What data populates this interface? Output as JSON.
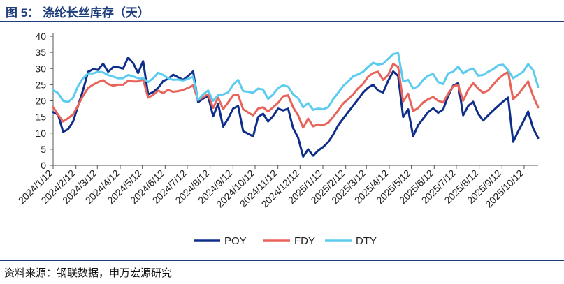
{
  "title": "图 5： 涤纶长丝库存（天）",
  "source": "资料来源：钢联数据，申万宏源研究",
  "chart_data": {
    "type": "line",
    "title": "涤纶长丝库存（天）",
    "xlabel": "",
    "ylabel": "",
    "ylim": [
      0,
      40
    ],
    "yticks": [
      "0",
      "5",
      "10",
      "15",
      "20",
      "25",
      "30",
      "35",
      "40"
    ],
    "x_start": "2024-01-12",
    "x_end": "2025-10-31",
    "x_ticks": [
      "2024/1/12",
      "2024/2/12",
      "2024/3/12",
      "2024/4/12",
      "2024/5/12",
      "2024/6/12",
      "2024/7/12",
      "2024/8/12",
      "2024/9/12",
      "2024/10/12",
      "2024/11/12",
      "2024/12/12",
      "2025/1/12",
      "2025/2/12",
      "2025/3/12",
      "2025/4/12",
      "2025/5/12",
      "2025/6/12",
      "2025/7/12",
      "2025/8/12",
      "2025/9/12",
      "2025/10/12"
    ],
    "legend_position": "bottom-center",
    "series": [
      {
        "name": "POY",
        "color": "#0F2E8A",
        "values": [
          16.5,
          15.7,
          10.4,
          11.2,
          13.6,
          18.5,
          23.4,
          29.0,
          29.8,
          29.6,
          31.5,
          29.0,
          30.4,
          30.4,
          30.0,
          33.4,
          31.7,
          28.6,
          32.3,
          22.0,
          22.7,
          24.0,
          26.1,
          26.8,
          28.1,
          27.3,
          26.5,
          27.7,
          29.1,
          19.6,
          20.7,
          21.5,
          15.2,
          19.0,
          12.0,
          14.5,
          17.6,
          18.4,
          10.6,
          9.8,
          9.0,
          15.0,
          16.0,
          13.6,
          15.3,
          17.6,
          17.0,
          17.6,
          11.5,
          8.6,
          2.7,
          5.0,
          3.0,
          4.6,
          5.7,
          7.2,
          9.5,
          12.4,
          14.5,
          16.5,
          18.5,
          20.5,
          22.6,
          24.1,
          25.0,
          23.2,
          22.6,
          26.2,
          29.1,
          27.7,
          15.0,
          17.4,
          9.0,
          12.5,
          14.5,
          16.5,
          17.7,
          16.3,
          17.3,
          21.5,
          24.7,
          25.5,
          15.5,
          18.4,
          19.7,
          16.0,
          13.9,
          15.5,
          17.0,
          18.4,
          19.8,
          21.0,
          7.3,
          10.5,
          13.5,
          16.7,
          11.5,
          8.5
        ]
      },
      {
        "name": "FDY",
        "color": "#E8635A",
        "values": [
          18.0,
          15.7,
          13.6,
          14.6,
          15.8,
          18.6,
          21.6,
          24.0,
          25.0,
          25.8,
          26.4,
          25.2,
          24.7,
          25.0,
          25.0,
          26.2,
          26.0,
          26.0,
          26.6,
          21.0,
          21.8,
          23.2,
          22.4,
          23.4,
          22.8,
          23.0,
          23.4,
          24.0,
          24.8,
          20.2,
          21.2,
          22.0,
          17.8,
          21.0,
          17.4,
          19.5,
          21.7,
          21.8,
          17.4,
          16.4,
          15.5,
          17.6,
          18.0,
          16.7,
          18.0,
          19.4,
          21.4,
          21.7,
          18.0,
          15.5,
          11.7,
          14.5,
          12.1,
          12.7,
          12.5,
          13.2,
          15.0,
          17.0,
          19.2,
          20.5,
          22.0,
          23.9,
          25.3,
          27.5,
          28.6,
          29.0,
          26.5,
          28.0,
          31.4,
          30.5,
          19.8,
          22.2,
          16.8,
          17.8,
          19.5,
          20.5,
          21.2,
          20.0,
          19.5,
          22.2,
          24.5,
          24.9,
          20.0,
          23.4,
          25.5,
          23.8,
          22.5,
          23.2,
          25.0,
          26.8,
          28.0,
          29.0,
          20.5,
          22.0,
          24.0,
          26.0,
          21.5,
          18.0
        ]
      },
      {
        "name": "DTY",
        "color": "#5BCBF0",
        "values": [
          23.3,
          22.4,
          20.0,
          19.6,
          21.0,
          24.6,
          27.0,
          28.5,
          28.5,
          29.0,
          28.8,
          28.0,
          27.5,
          27.0,
          27.0,
          28.0,
          27.6,
          27.0,
          27.0,
          25.8,
          27.0,
          28.7,
          28.0,
          27.0,
          26.5,
          26.6,
          26.3,
          26.8,
          27.5,
          20.2,
          22.0,
          23.2,
          20.0,
          21.8,
          22.0,
          22.6,
          25.0,
          26.5,
          23.0,
          22.8,
          22.5,
          23.8,
          23.5,
          20.6,
          22.0,
          24.0,
          24.8,
          24.4,
          22.0,
          20.8,
          18.0,
          19.3,
          17.2,
          17.6,
          17.4,
          18.0,
          20.5,
          22.5,
          24.6,
          26.0,
          27.6,
          28.2,
          29.0,
          30.5,
          31.8,
          31.2,
          31.5,
          33.0,
          34.5,
          34.8,
          26.0,
          26.5,
          23.8,
          24.5,
          26.5,
          27.8,
          28.3,
          25.8,
          25.2,
          28.5,
          29.0,
          30.6,
          28.5,
          29.5,
          30.0,
          27.8,
          28.0,
          29.0,
          29.8,
          31.0,
          31.2,
          29.5,
          27.0,
          28.0,
          29.0,
          31.4,
          29.5,
          24.3
        ]
      }
    ]
  }
}
